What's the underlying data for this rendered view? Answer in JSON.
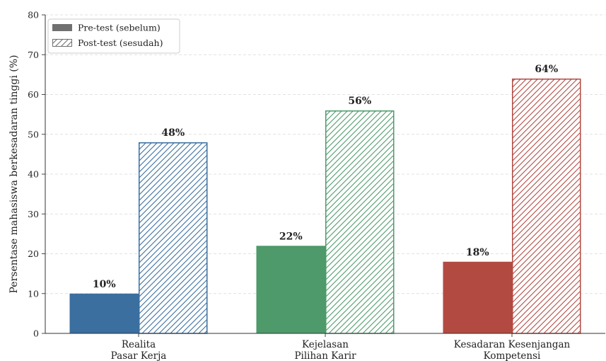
{
  "chart_data": {
    "type": "bar",
    "categories": [
      "Realita\nPasar Kerja",
      "Kejelasan\nPilihan Karir",
      "Kesadaran Kesenjangan\nKompetensi"
    ],
    "series": [
      {
        "name": "Pre-test (sebelum)",
        "values": [
          10,
          22,
          18
        ],
        "style": "solid"
      },
      {
        "name": "Post-test (sesudah)",
        "values": [
          48,
          56,
          64
        ],
        "style": "hatched"
      }
    ],
    "data_labels": [
      [
        "10%",
        "22%",
        "18%"
      ],
      [
        "48%",
        "56%",
        "64%"
      ]
    ],
    "category_colors": [
      "#3a6f9f",
      "#4e9a6a",
      "#b24a42"
    ],
    "legend_swatch_color": "#707070",
    "xlabel": "",
    "ylabel": "Persentase mahasiswa berkesadaran tinggi (%)",
    "ylim": [
      0,
      80
    ],
    "yticks": [
      0,
      10,
      20,
      30,
      40,
      50,
      60,
      70,
      80
    ],
    "grid": true,
    "legend_position": "top-left"
  }
}
